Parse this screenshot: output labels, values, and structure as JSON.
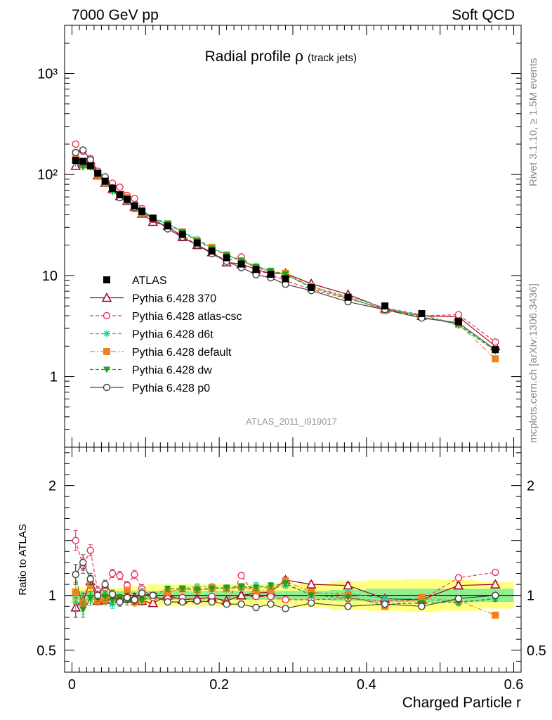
{
  "header": {
    "left": "7000 GeV pp",
    "right": "Soft QCD"
  },
  "title": {
    "main": "Radial profile ρ",
    "sub": "(track jets)"
  },
  "side_labels": {
    "rivet": "Rivet 3.1.10, ≥ 1.5M events",
    "source": "mcplots.cern.ch [arXiv:1306.3436]"
  },
  "watermark": "ATLAS_2011_I919017",
  "chart_data": [
    {
      "type": "scatter",
      "panel": "main",
      "y_scale": "log",
      "ylim": [
        0.2,
        3000
      ],
      "xlim": [
        -0.01,
        0.61
      ],
      "y_ticks_major": [
        "1",
        "10",
        "10²",
        "10³"
      ],
      "legend_position": "middle-left",
      "x": [
        0.005,
        0.015,
        0.025,
        0.035,
        0.045,
        0.055,
        0.065,
        0.075,
        0.085,
        0.095,
        0.11,
        0.13,
        0.15,
        0.17,
        0.19,
        0.21,
        0.23,
        0.25,
        0.27,
        0.29,
        0.325,
        0.375,
        0.425,
        0.475,
        0.525,
        0.575
      ],
      "series": [
        {
          "name": "ATLAS",
          "color": "#000000",
          "marker": "square-filled",
          "line": "none",
          "values": [
            138,
            135,
            122,
            103,
            86,
            73,
            63,
            57,
            49,
            43,
            37,
            31,
            25.5,
            21,
            17.5,
            15,
            13,
            11.5,
            10.3,
            9.3,
            7.6,
            6.1,
            5.0,
            4.2,
            3.5,
            1.85
          ]
        },
        {
          "name": "Pythia 6.428 370",
          "color": "#a00020",
          "marker": "triangle-open",
          "line": "solid",
          "values": [
            122,
            128,
            138,
            98,
            83,
            72,
            61,
            55,
            48,
            41,
            34,
            31,
            24,
            20,
            17,
            13.5,
            13,
            11.5,
            10.5,
            10.5,
            8.3,
            6.5,
            4.7,
            4.0,
            3.9,
            2.0
          ]
        },
        {
          "name": "Pythia 6.428 atlas-csc",
          "color": "#e8305a",
          "marker": "circle-open",
          "line": "dashed",
          "values": [
            200,
            170,
            145,
            108,
            92,
            82,
            75,
            62,
            58,
            46,
            36,
            30,
            25,
            20,
            17,
            14,
            15.3,
            11.5,
            10.2,
            8.9,
            7.3,
            5.9,
            4.7,
            4.0,
            4.1,
            2.2
          ]
        },
        {
          "name": "Pythia 6.428 d6t",
          "color": "#20c890",
          "marker": "star",
          "line": "dashed",
          "values": [
            130,
            122,
            118,
            100,
            82,
            68,
            60,
            55,
            47,
            42,
            37,
            32,
            27,
            23,
            19,
            16,
            14,
            12.5,
            11,
            10.2,
            7.8,
            6.2,
            4.8,
            4.1,
            3.2,
            1.8
          ]
        },
        {
          "name": "Pythia 6.428 default",
          "color": "#f08020",
          "marker": "square-filled",
          "line": "dashdot",
          "values": [
            143,
            125,
            133,
            98,
            83,
            72,
            61,
            59,
            46,
            41,
            37,
            32,
            27,
            22,
            19,
            16,
            14,
            12,
            10.8,
            10.5,
            7.8,
            6.1,
            4.5,
            4.1,
            3.3,
            1.5
          ]
        },
        {
          "name": "Pythia 6.428 dw",
          "color": "#20a020",
          "marker": "triangle-down-filled",
          "line": "dashed",
          "values": [
            165,
            118,
            120,
            101,
            85,
            69,
            61,
            54,
            47,
            41,
            37,
            33,
            27,
            22,
            18.5,
            16,
            14,
            12.3,
            11.2,
            10.3,
            7.6,
            6.0,
            4.6,
            3.9,
            3.3,
            1.8
          ]
        },
        {
          "name": "Pythia 6.428 p0",
          "color": "#404040",
          "marker": "circle-open",
          "line": "solid",
          "values": [
            165,
            175,
            140,
            103,
            95,
            74,
            59,
            56,
            47,
            44,
            37,
            29,
            24,
            20,
            16.5,
            13.8,
            12,
            10.2,
            9.5,
            8.2,
            7.1,
            5.5,
            4.6,
            3.8,
            3.4,
            1.85
          ]
        }
      ]
    },
    {
      "type": "scatter",
      "panel": "ratio",
      "ylabel": "Ratio to ATLAS",
      "xlabel": "Charged Particle r",
      "ylim": [
        0.3,
        2.35
      ],
      "xlim": [
        -0.01,
        0.61
      ],
      "y_ticks": [
        "0.5",
        "1",
        "2"
      ],
      "x_ticks": [
        "0",
        "0.2",
        "0.4",
        "0.6"
      ],
      "band_inner_color": "#90ee90",
      "band_outer_color": "#ffff80",
      "band": {
        "inner": [
          0.04,
          0.04,
          0.04,
          0.04,
          0.04,
          0.04,
          0.04,
          0.04,
          0.04,
          0.04,
          0.04,
          0.04,
          0.04,
          0.04,
          0.04,
          0.04,
          0.04,
          0.04,
          0.04,
          0.04,
          0.04,
          0.05,
          0.06,
          0.06,
          0.06,
          0.06
        ],
        "outer": [
          0.07,
          0.07,
          0.07,
          0.07,
          0.07,
          0.07,
          0.07,
          0.07,
          0.08,
          0.09,
          0.1,
          0.1,
          0.1,
          0.1,
          0.1,
          0.1,
          0.1,
          0.1,
          0.1,
          0.1,
          0.11,
          0.13,
          0.14,
          0.15,
          0.14,
          0.12
        ]
      },
      "series": [
        {
          "name": "Pythia 6.428 370",
          "color": "#a00020",
          "values": [
            0.89,
            0.95,
            1.13,
            0.95,
            0.96,
            0.99,
            0.97,
            0.97,
            0.98,
            0.95,
            0.93,
            1.0,
            0.96,
            0.97,
            0.98,
            0.95,
            1.0,
            1.02,
            1.03,
            1.14,
            1.1,
            1.09,
            0.97,
            0.96,
            1.09,
            1.1
          ]
        },
        {
          "name": "Pythia 6.428 atlas-csc",
          "color": "#e8305a",
          "values": [
            1.5,
            1.27,
            1.41,
            1.04,
            1.07,
            1.2,
            1.18,
            1.09,
            1.19,
            1.06,
            0.98,
            0.97,
            0.98,
            0.96,
            0.99,
            0.93,
            1.18,
            0.99,
            0.99,
            0.96,
            0.96,
            0.97,
            0.95,
            0.96,
            1.16,
            1.21
          ]
        },
        {
          "name": "Pythia 6.428 d6t",
          "color": "#20c890",
          "values": [
            0.94,
            0.9,
            0.96,
            0.97,
            0.95,
            0.92,
            0.95,
            0.97,
            0.96,
            0.98,
            1.0,
            1.03,
            1.06,
            1.08,
            1.08,
            1.06,
            1.07,
            1.09,
            1.06,
            1.09,
            1.02,
            1.02,
            0.97,
            0.97,
            0.93,
            0.97
          ]
        },
        {
          "name": "Pythia 6.428 default",
          "color": "#f08020",
          "values": [
            1.03,
            0.93,
            1.09,
            0.95,
            0.96,
            0.99,
            0.96,
            1.04,
            0.94,
            0.96,
            1.0,
            1.03,
            1.06,
            1.05,
            1.07,
            1.06,
            1.08,
            1.04,
            1.05,
            1.13,
            1.03,
            1.0,
            0.9,
            0.98,
            0.95,
            0.82
          ]
        },
        {
          "name": "Pythia 6.428 dw",
          "color": "#20a020",
          "values": [
            1.19,
            0.87,
            0.98,
            0.98,
            0.99,
            0.95,
            0.97,
            0.95,
            0.96,
            0.95,
            1.0,
            1.06,
            1.06,
            1.05,
            1.06,
            1.07,
            1.08,
            1.07,
            1.09,
            1.11,
            1.0,
            0.98,
            0.92,
            0.93,
            0.94,
            0.97
          ]
        },
        {
          "name": "Pythia 6.428 p0",
          "color": "#404040",
          "values": [
            1.19,
            1.3,
            1.15,
            1.0,
            1.1,
            1.01,
            0.94,
            0.98,
            0.96,
            1.02,
            1.0,
            0.94,
            0.94,
            0.95,
            0.94,
            0.92,
            0.92,
            0.89,
            0.92,
            0.88,
            0.93,
            0.9,
            0.92,
            0.9,
            0.97,
            1.0
          ]
        }
      ]
    }
  ]
}
